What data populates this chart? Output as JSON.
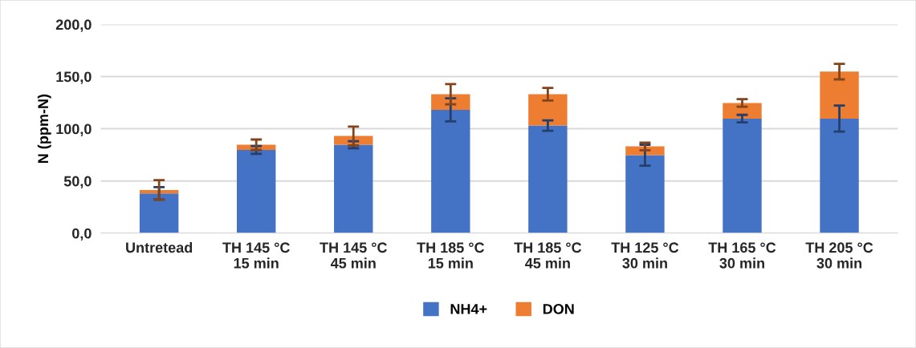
{
  "chart_data": {
    "type": "bar",
    "stacked": true,
    "ylabel": "N (ppm-N)",
    "categories": [
      "Untretead",
      "TH 145 °C\n15 min",
      "TH 145 °C\n45 min",
      "TH 185 °C\n15 min",
      "TH 185 °C\n45 min",
      "TH 125 °C\n30 min",
      "TH 165 °C\n30 min",
      "TH 205 °C\n30 min"
    ],
    "series": [
      {
        "name": "NH4+",
        "color": "#4472c4",
        "values": [
          38.1,
          79.7,
          84.7,
          118.1,
          103.1,
          74.7,
          109.7,
          109.7
        ],
        "errors": [
          6,
          3.8,
          3.3,
          11,
          5,
          10,
          3.6,
          12.5
        ]
      },
      {
        "name": "DON",
        "color": "#ed7d31",
        "values": [
          3.3,
          5,
          8.4,
          15,
          30,
          8.4,
          15,
          45
        ],
        "errors": [
          9.4,
          5,
          9,
          9.7,
          6,
          3.7,
          3.6,
          7.4
        ]
      }
    ],
    "ylim": [
      0,
      200
    ],
    "yticks": [
      {
        "value": 0,
        "label": "0,0"
      },
      {
        "value": 50,
        "label": "50,0"
      },
      {
        "value": 100,
        "label": "100,0"
      },
      {
        "value": 150,
        "label": "150,0"
      },
      {
        "value": 200,
        "label": "200,0"
      }
    ],
    "grid": "y",
    "legend": "bottom"
  }
}
